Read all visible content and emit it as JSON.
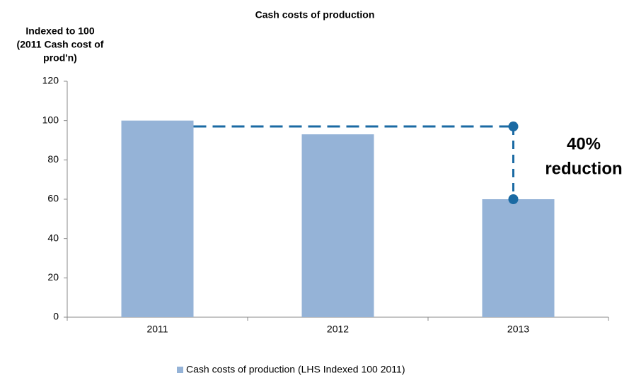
{
  "chart_data": {
    "type": "bar",
    "title": "Cash costs of production",
    "y_axis_label": [
      "Indexed to 100",
      "(2011 Cash cost of",
      "prod'n)"
    ],
    "categories": [
      "2011",
      "2012",
      "2013"
    ],
    "series": [
      {
        "name": "Cash costs of production (LHS Indexed 100 2011)",
        "color": "#95b3d7",
        "values": [
          100,
          93,
          60
        ]
      }
    ],
    "ylim": [
      0,
      120
    ],
    "yticks": [
      0,
      20,
      40,
      60,
      80,
      100,
      120
    ],
    "grid": false,
    "legend": "bottom",
    "annotation": {
      "text": [
        "40%",
        "reduction"
      ],
      "line_from": 97,
      "line_to": 60,
      "color": "#1a6aa3"
    }
  }
}
